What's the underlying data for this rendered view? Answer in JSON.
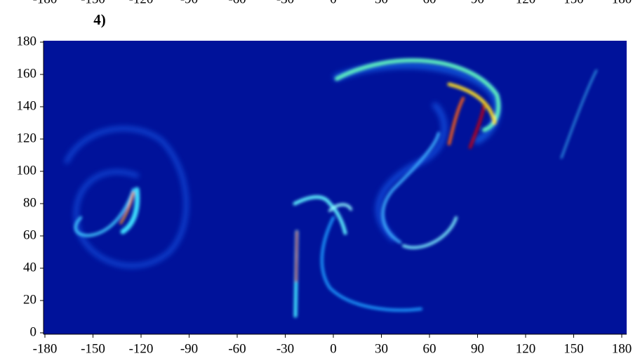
{
  "chart_data": {
    "type": "heatmap",
    "panel_label": "4)",
    "xlim": [
      -180,
      180
    ],
    "ylim": [
      0,
      180
    ],
    "xticks": [
      -180,
      -150,
      -120,
      -90,
      -60,
      -30,
      0,
      30,
      60,
      90,
      120,
      150,
      180
    ],
    "yticks": [
      0,
      20,
      40,
      60,
      80,
      100,
      120,
      140,
      160,
      180
    ],
    "background": "#00129a"
  }
}
